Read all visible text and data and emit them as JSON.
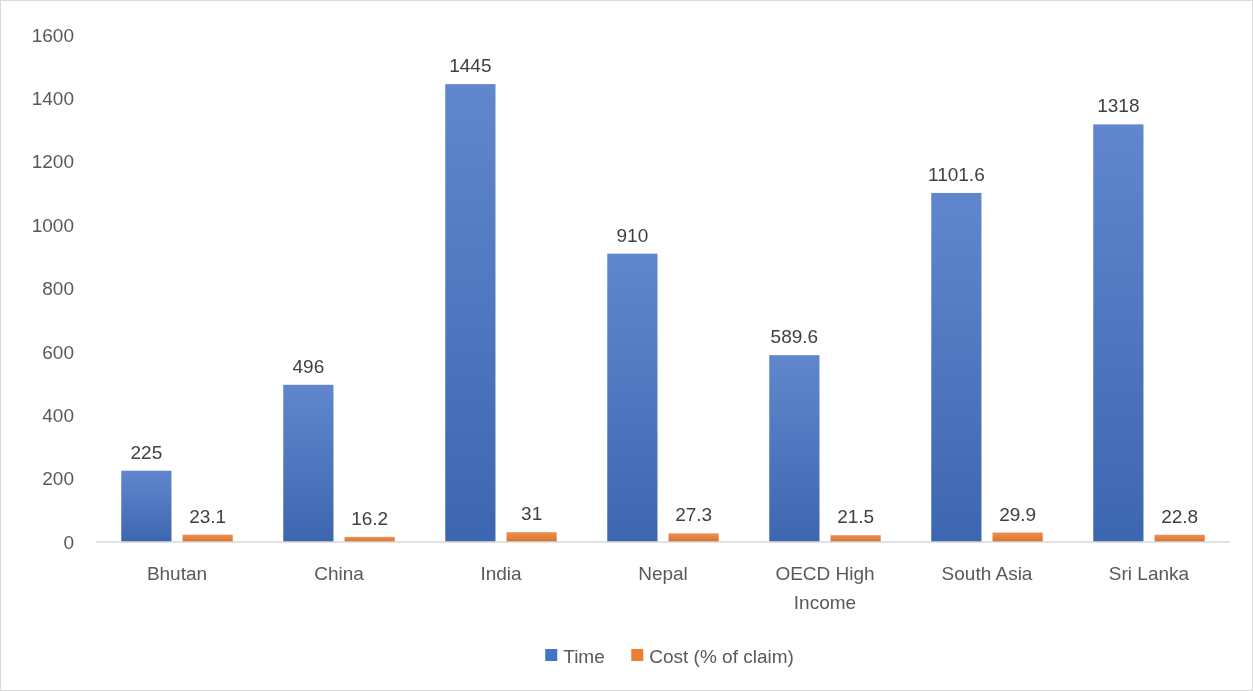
{
  "chart_data": {
    "type": "bar",
    "categories": [
      "Bhutan",
      "China",
      "India",
      "Nepal",
      "OECD High Income",
      "South Asia",
      "Sri Lanka"
    ],
    "series": [
      {
        "name": "Time",
        "color": "#4472c4",
        "values": [
          225,
          496,
          1445,
          910,
          589.6,
          1101.6,
          1318
        ]
      },
      {
        "name": "Cost (% of claim)",
        "color": "#ed7d31",
        "values": [
          23.1,
          16.2,
          31,
          27.3,
          21.5,
          29.9,
          22.8
        ]
      }
    ],
    "ylim": [
      0,
      1600
    ],
    "yticks": [
      0,
      200,
      400,
      600,
      800,
      1000,
      1200,
      1400,
      1600
    ],
    "data_labels": true,
    "legend": "bottom",
    "grid": false
  }
}
